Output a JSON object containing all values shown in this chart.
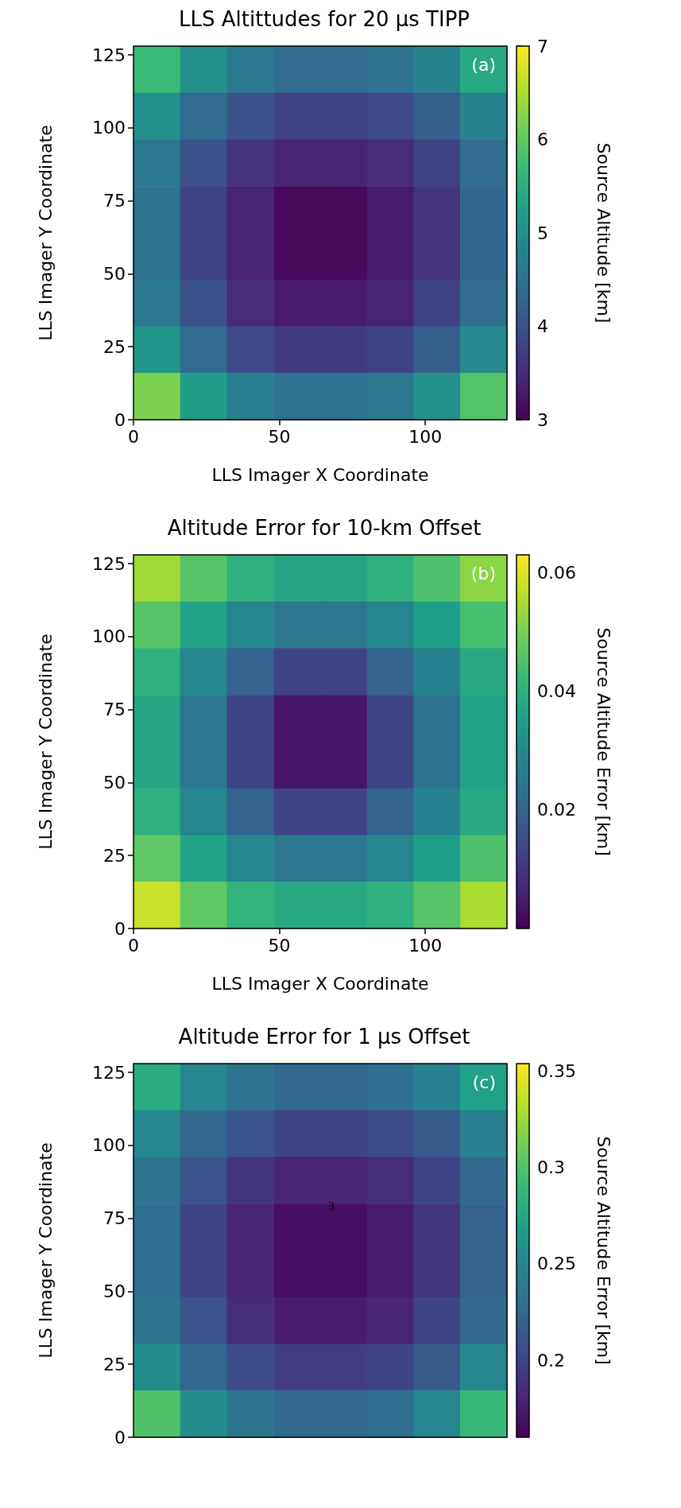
{
  "chart_data": [
    {
      "type": "heatmap",
      "title": "LLS Altittudes for 20 µs TIPP",
      "xlabel": "LLS Imager X Coordinate",
      "ylabel": "LLS Imager Y Coordinate",
      "clabel": "Source Altitude [km]",
      "annotations": [
        "(a)"
      ],
      "xlim": [
        0,
        128
      ],
      "ylim": [
        0,
        128
      ],
      "xticks": [
        0,
        50,
        100
      ],
      "yticks": [
        0,
        25,
        50,
        75,
        100,
        125
      ],
      "clim": [
        3,
        7
      ],
      "cticks": [
        3,
        4,
        5,
        6,
        7
      ],
      "cells": [
        [
          5.7,
          5.0,
          4.6,
          4.4,
          4.4,
          4.5,
          4.8,
          5.4
        ],
        [
          5.0,
          4.4,
          4.0,
          3.8,
          3.8,
          3.9,
          4.2,
          4.8
        ],
        [
          4.6,
          4.0,
          3.6,
          3.4,
          3.4,
          3.5,
          3.8,
          4.4
        ],
        [
          4.5,
          3.8,
          3.4,
          3.1,
          3.1,
          3.3,
          3.6,
          4.3
        ],
        [
          4.5,
          3.8,
          3.4,
          3.1,
          3.1,
          3.3,
          3.6,
          4.3
        ],
        [
          4.6,
          4.0,
          3.5,
          3.3,
          3.3,
          3.4,
          3.8,
          4.4
        ],
        [
          5.1,
          4.4,
          3.9,
          3.7,
          3.7,
          3.8,
          4.2,
          4.9
        ],
        [
          6.2,
          5.2,
          4.7,
          4.5,
          4.5,
          4.6,
          5.0,
          5.9
        ]
      ]
    },
    {
      "type": "heatmap",
      "title": "Altitude Error for 10-km Offset",
      "xlabel": "LLS Imager X Coordinate",
      "ylabel": "LLS Imager Y Coordinate",
      "clabel": "Source Altitude Error [km]",
      "annotations": [
        "(b)"
      ],
      "xlim": [
        0,
        128
      ],
      "ylim": [
        0,
        128
      ],
      "xticks": [
        0,
        50,
        100
      ],
      "yticks": [
        0,
        25,
        50,
        75,
        100,
        125
      ],
      "clim": [
        0,
        0.063
      ],
      "cticks": [
        0.02,
        0.04,
        0.06
      ],
      "cells": [
        [
          0.054,
          0.046,
          0.04,
          0.037,
          0.037,
          0.04,
          0.045,
          0.052
        ],
        [
          0.046,
          0.036,
          0.029,
          0.025,
          0.025,
          0.029,
          0.035,
          0.044
        ],
        [
          0.04,
          0.029,
          0.02,
          0.013,
          0.013,
          0.02,
          0.028,
          0.038
        ],
        [
          0.037,
          0.025,
          0.013,
          0.004,
          0.004,
          0.013,
          0.024,
          0.036
        ],
        [
          0.037,
          0.025,
          0.013,
          0.004,
          0.004,
          0.013,
          0.024,
          0.036
        ],
        [
          0.04,
          0.029,
          0.02,
          0.013,
          0.013,
          0.02,
          0.028,
          0.038
        ],
        [
          0.047,
          0.036,
          0.029,
          0.025,
          0.025,
          0.029,
          0.035,
          0.045
        ],
        [
          0.058,
          0.047,
          0.041,
          0.038,
          0.038,
          0.04,
          0.046,
          0.055
        ]
      ]
    },
    {
      "type": "heatmap",
      "title": "Altitude Error for 1 µs Offset",
      "ylabel": "LLS Imager Y Coordinate",
      "clabel": "Source Altitude Error [km]",
      "annotations": [
        "(c)",
        "3"
      ],
      "xlim": [
        0,
        128
      ],
      "ylim": [
        0,
        128
      ],
      "yticks": [
        0,
        25,
        50,
        75,
        100,
        125
      ],
      "tick_labels": "y",
      "clim": [
        0.16,
        0.354
      ],
      "cticks": [
        0.2,
        0.25,
        0.3,
        0.35
      ],
      "cells": [
        [
          0.28,
          0.25,
          0.235,
          0.225,
          0.225,
          0.23,
          0.245,
          0.27
        ],
        [
          0.25,
          0.225,
          0.21,
          0.2,
          0.2,
          0.205,
          0.215,
          0.245
        ],
        [
          0.235,
          0.21,
          0.19,
          0.18,
          0.18,
          0.185,
          0.2,
          0.225
        ],
        [
          0.23,
          0.2,
          0.18,
          0.167,
          0.167,
          0.175,
          0.19,
          0.22
        ],
        [
          0.23,
          0.2,
          0.18,
          0.167,
          0.167,
          0.175,
          0.19,
          0.22
        ],
        [
          0.235,
          0.21,
          0.185,
          0.175,
          0.175,
          0.18,
          0.2,
          0.225
        ],
        [
          0.255,
          0.225,
          0.205,
          0.195,
          0.195,
          0.2,
          0.215,
          0.25
        ],
        [
          0.3,
          0.255,
          0.235,
          0.225,
          0.225,
          0.23,
          0.25,
          0.29
        ]
      ]
    }
  ]
}
